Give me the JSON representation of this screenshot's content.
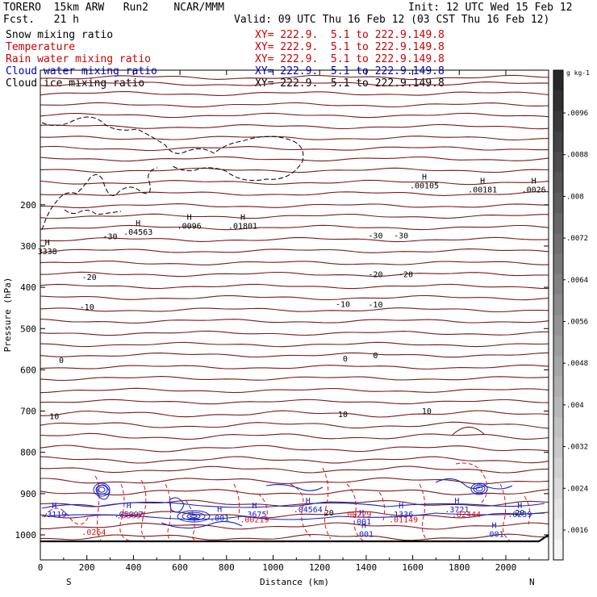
{
  "header": {
    "model": "TORERO  15km ARW   Run2    NCAR/MMM",
    "init": "Init: 12 UTC Wed 15 Feb 12",
    "fcst": "Fcst.   21 h",
    "valid": "Valid: 09 UTC Thu 16 Feb 12 (03 CST Thu 16 Feb 12)"
  },
  "fields": [
    {
      "name": "Snow mixing ratio",
      "xy": "",
      "color": "#000000"
    },
    {
      "name": "Temperature",
      "xy": "XY= 222.9.  5.1 to 222.9.149.8",
      "color": "#cc0000"
    },
    {
      "name": "Rain water mixing ratio",
      "xy": "XY= 222.9.  5.1 to 222.9.149.8",
      "color": "#cc0000"
    },
    {
      "name": "Cloud water mixing ratio",
      "xy": "XY= 222.9.  5.1 to 222.9.149.8",
      "color": "#0000cc"
    },
    {
      "name": "Cloud ice mixing ratio",
      "xy": "XY= 222.9.  5.1 to 222.9.149.8",
      "color": "#000000"
    }
  ],
  "snow_xy": "XY= 222.9.  5.1 to 222.9.149.8",
  "colors": {
    "temperature": "#7a1a1a",
    "rain": "#dd1111",
    "cloud_water": "#1122cc",
    "ice": "#000000"
  },
  "chart_data": {
    "type": "contour",
    "xlabel": "Distance (km)",
    "ylabel": "Pressure (hPa)",
    "x_ticks": [
      0,
      200,
      400,
      600,
      800,
      1000,
      1200,
      1400,
      1600,
      1800,
      2000
    ],
    "y_ticks": [
      200,
      300,
      400,
      500,
      600,
      700,
      800,
      900,
      1000
    ],
    "xlim": [
      0,
      2180
    ],
    "ylim": [
      1050,
      100
    ],
    "left_end": "S",
    "right_end": "N",
    "temperature_levels": [
      {
        "label": "-30",
        "p": 212
      },
      {
        "label": "-20",
        "p": 286
      },
      {
        "label": "-10",
        "p": 367
      },
      {
        "label": "0",
        "p": 580
      },
      {
        "label": "10",
        "p": 710
      }
    ],
    "temperature_labels": [
      {
        "text": "-30",
        "x": 300,
        "p": 283
      },
      {
        "text": "-30",
        "x": 1440,
        "p": 282
      },
      {
        "text": "-30",
        "x": 1550,
        "p": 282
      },
      {
        "text": "-20",
        "x": 210,
        "p": 382
      },
      {
        "text": "-20",
        "x": 1440,
        "p": 375
      },
      {
        "text": "-20",
        "x": 1570,
        "p": 375
      },
      {
        "text": "-10",
        "x": 200,
        "p": 455
      },
      {
        "text": "-10",
        "x": 1300,
        "p": 448
      },
      {
        "text": "-10",
        "x": 1440,
        "p": 449
      },
      {
        "text": "0",
        "x": 90,
        "p": 584
      },
      {
        "text": "0",
        "x": 1310,
        "p": 580
      },
      {
        "text": "0",
        "x": 1440,
        "p": 572
      },
      {
        "text": "10",
        "x": 60,
        "p": 719
      },
      {
        "text": "10",
        "x": 1300,
        "p": 715
      },
      {
        "text": "10",
        "x": 1660,
        "p": 707
      },
      {
        "text": "20",
        "x": 1240,
        "p": 953
      },
      {
        "text": "20",
        "x": 2060,
        "p": 953
      }
    ],
    "maxima": [
      {
        "text": ".00105",
        "x": 1650,
        "p": 160
      },
      {
        "text": ".00181",
        "x": 1900,
        "p": 170
      },
      {
        "text": ".0026",
        "x": 2120,
        "p": 170
      },
      {
        "text": ".0096",
        "x": 640,
        "p": 258
      },
      {
        "text": ".01801",
        "x": 870,
        "p": 258
      },
      {
        "text": ".04563",
        "x": 420,
        "p": 273
      },
      {
        "text": "3338",
        "x": 30,
        "p": 320
      },
      {
        "text": ".3119",
        "x": 60,
        "p": 957
      },
      {
        "text": ".05097",
        "x": 380,
        "p": 957
      },
      {
        "text": ".3675",
        "x": 920,
        "p": 957
      },
      {
        "text": ".04564",
        "x": 1150,
        "p": 945
      },
      {
        "text": ".3721",
        "x": 1790,
        "p": 945
      },
      {
        "text": ".1336",
        "x": 1550,
        "p": 957
      },
      {
        "text": ".0239",
        "x": 2060,
        "p": 957
      },
      {
        "text": ".001",
        "x": 770,
        "p": 966
      },
      {
        "text": ".001",
        "x": 1380,
        "p": 975
      },
      {
        "text": ".001",
        "x": 1390,
        "p": 1005
      },
      {
        "text": ".001",
        "x": 1950,
        "p": 1005
      }
    ],
    "red_labels": [
      {
        "text": ".00219",
        "x": 920,
        "p": 970
      },
      {
        "text": ".00229",
        "x": 1360,
        "p": 957
      },
      {
        "text": ".01149",
        "x": 1560,
        "p": 970
      },
      {
        "text": ".02444",
        "x": 1830,
        "p": 957
      },
      {
        "text": ".05697",
        "x": 390,
        "p": 960
      },
      {
        "text": ".0264",
        "x": 230,
        "p": 1000
      }
    ],
    "colorbar": {
      "unit": "g kg-1",
      "ticks": [
        ".0096",
        ".0088",
        ".008",
        ".0072",
        ".0064",
        ".0056",
        ".0048",
        ".004",
        ".0032",
        ".0024",
        ".0016"
      ]
    }
  }
}
